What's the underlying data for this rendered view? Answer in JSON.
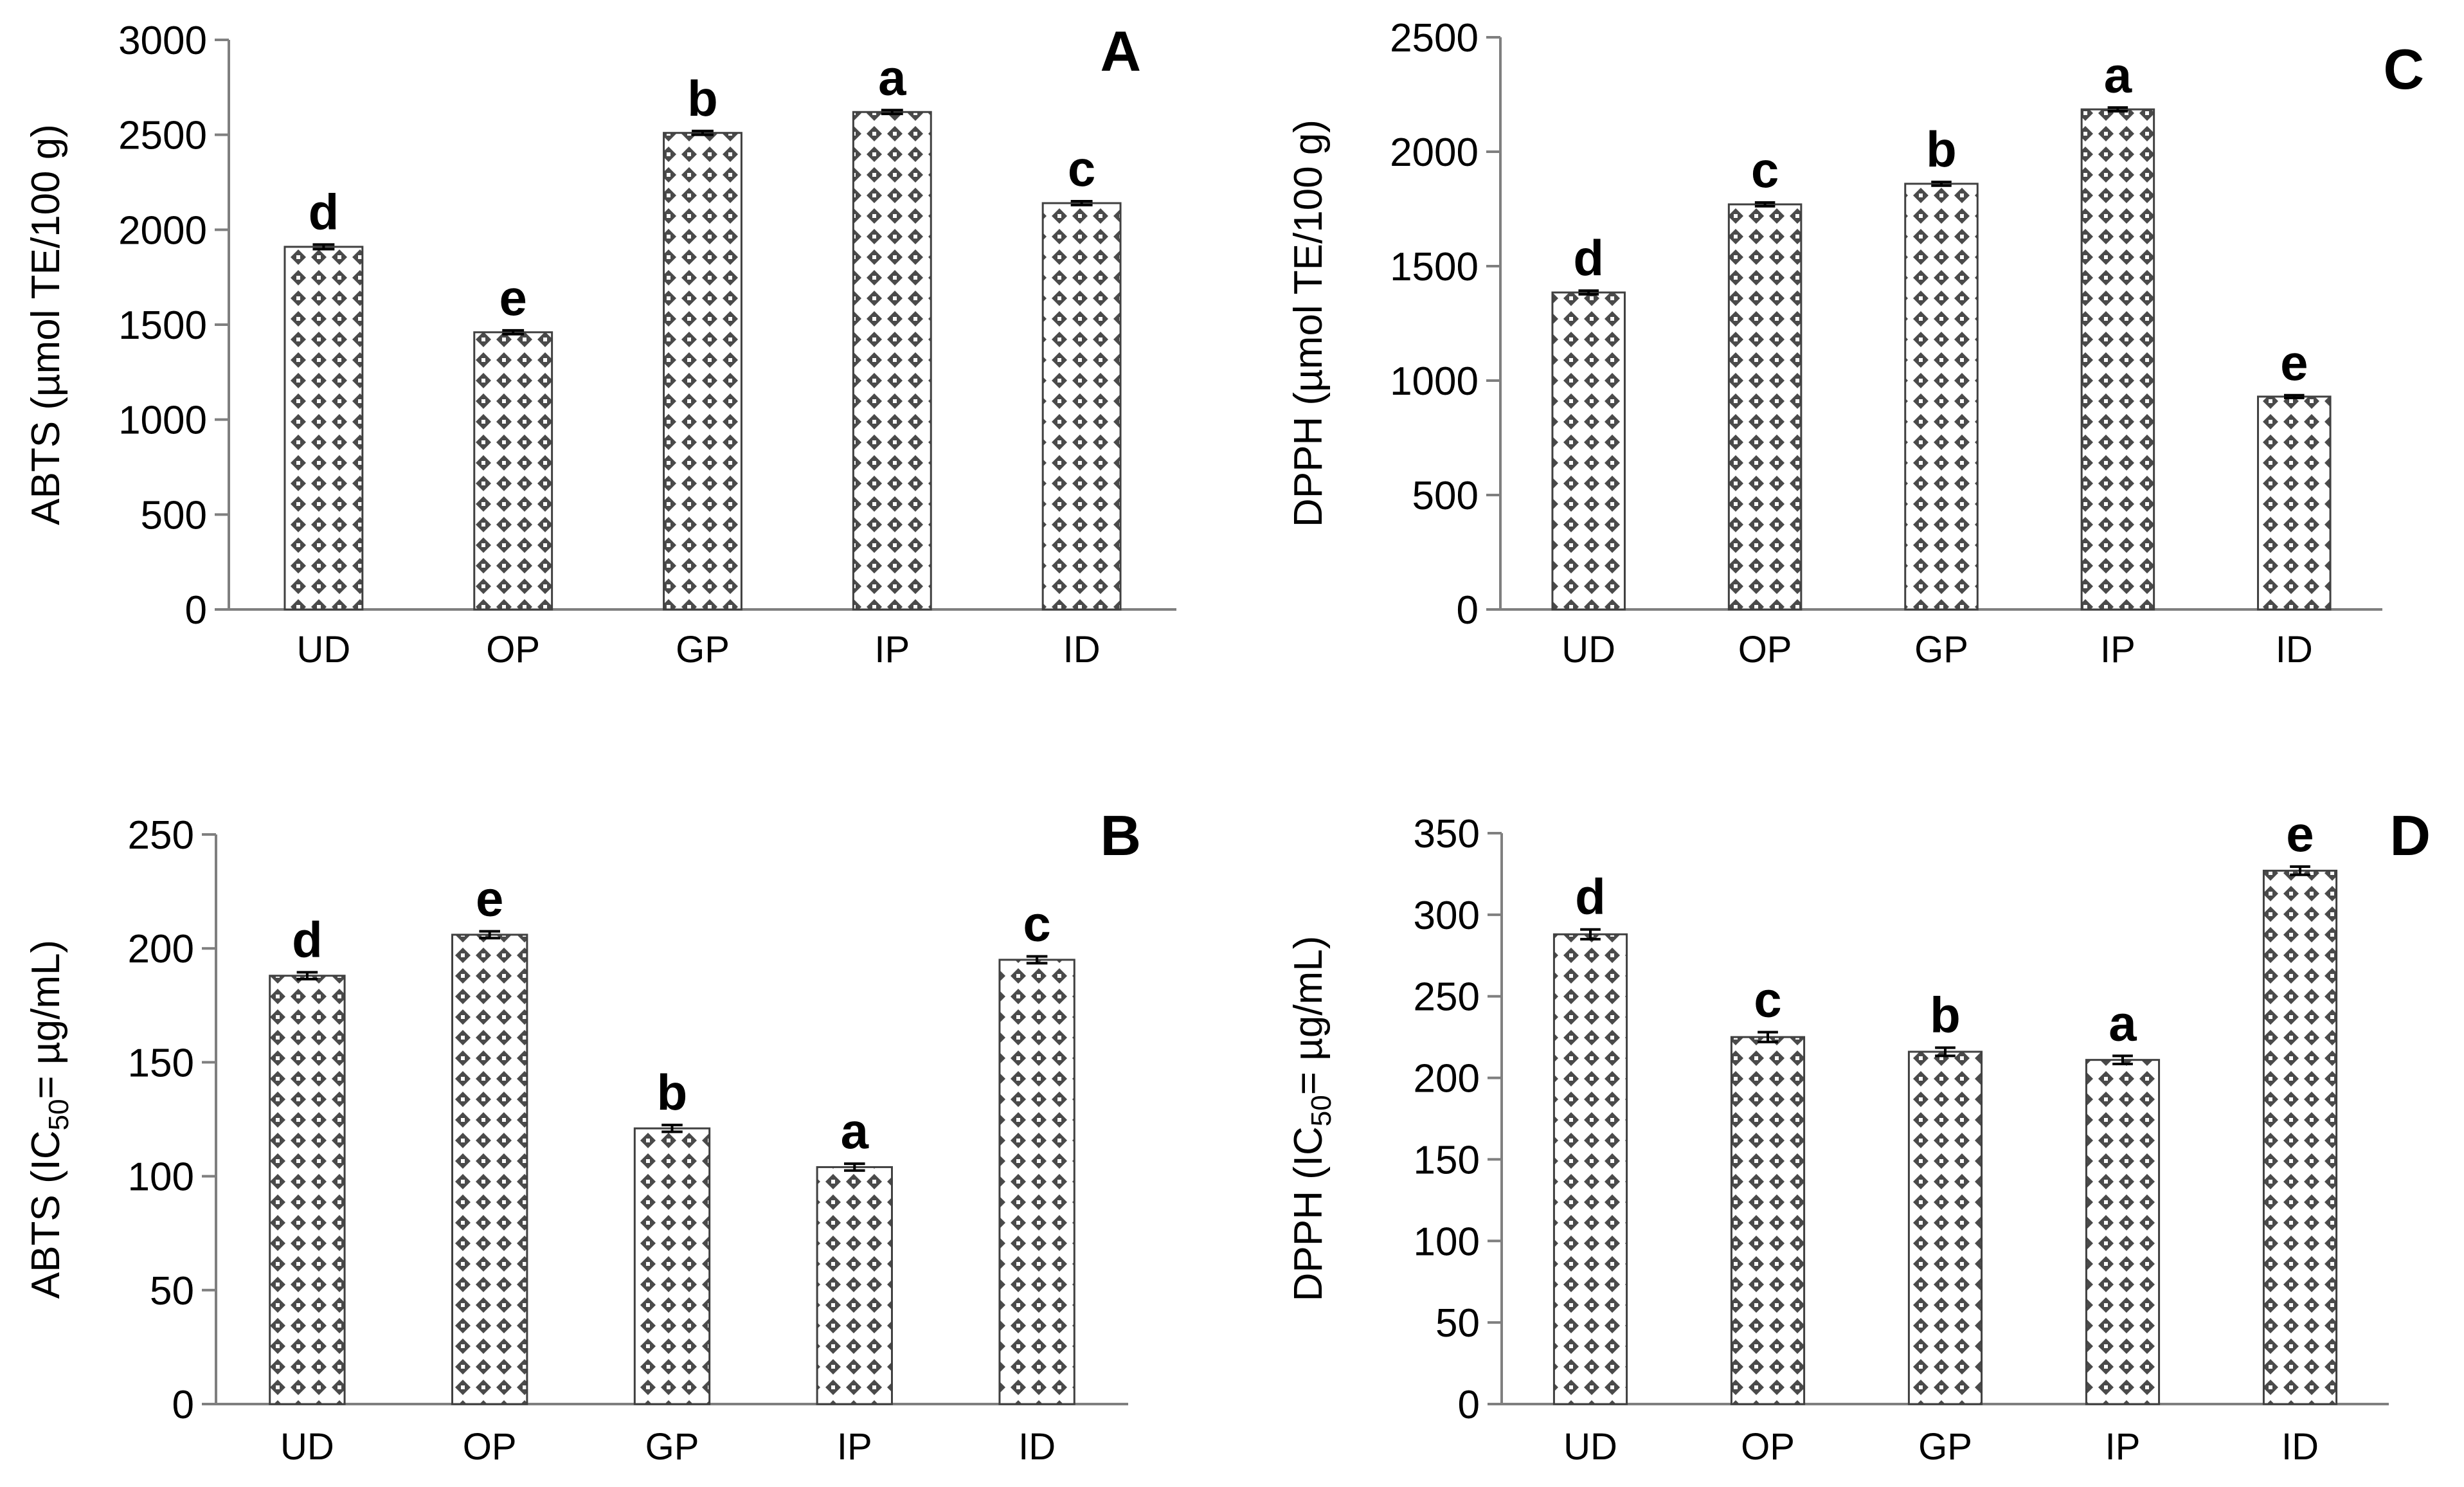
{
  "colors": {
    "bar_fill": "#ffffff",
    "bar_pattern": "#4a4a4a",
    "bar_outline": "#404040",
    "axis": "#7f7f7f",
    "text": "#000000"
  },
  "chart_data": [
    {
      "id": "A",
      "type": "bar",
      "panel_label": "A",
      "title": "",
      "xlabel": "",
      "ylabel": "ABTS (µmol TE/100 g)",
      "ylabel_parts": [
        "ABTS (µmol TE/100 g)"
      ],
      "categories": [
        "UD",
        "OP",
        "GP",
        "IP",
        "ID"
      ],
      "values": [
        1910,
        1460,
        2510,
        2620,
        2140
      ],
      "errors": [
        12,
        10,
        10,
        10,
        10
      ],
      "significance_letters": [
        "d",
        "e",
        "b",
        "a",
        "c"
      ],
      "ylim": [
        0,
        3000
      ],
      "yticks": [
        0,
        500,
        1000,
        1500,
        2000,
        2500,
        3000
      ],
      "ytick_labels": [
        "0",
        "500",
        "1000",
        "1500",
        "2000",
        "2500",
        "3000"
      ],
      "grid": false,
      "pattern": "dotted-diamond"
    },
    {
      "id": "C",
      "type": "bar",
      "panel_label": "C",
      "title": "",
      "xlabel": "",
      "ylabel": "DPPH (µmol TE/100 g)",
      "ylabel_parts": [
        "DPPH (µmol TE/100 g)"
      ],
      "categories": [
        "UD",
        "OP",
        "GP",
        "IP",
        "ID"
      ],
      "values": [
        1385,
        1770,
        1860,
        2185,
        930
      ],
      "errors": [
        8,
        8,
        8,
        8,
        6
      ],
      "significance_letters": [
        "d",
        "c",
        "b",
        "a",
        "e"
      ],
      "ylim": [
        0,
        2500
      ],
      "yticks": [
        0,
        500,
        1000,
        1500,
        2000,
        2500
      ],
      "ytick_labels": [
        "0",
        "500",
        "1000",
        "1500",
        "2000",
        "2500"
      ],
      "grid": false,
      "pattern": "dotted-diamond"
    },
    {
      "id": "B",
      "type": "bar",
      "panel_label": "B",
      "title": "",
      "xlabel": "",
      "ylabel": "ABTS (IC50= µg/mL)",
      "ylabel_parts": [
        "ABTS (IC",
        "50",
        "= µg/mL)"
      ],
      "categories": [
        "UD",
        "OP",
        "GP",
        "IP",
        "ID"
      ],
      "values": [
        188,
        206,
        121,
        104,
        195
      ],
      "errors": [
        1.5,
        1.5,
        1.5,
        1.5,
        1.5
      ],
      "significance_letters": [
        "d",
        "e",
        "b",
        "a",
        "c"
      ],
      "ylim": [
        0,
        250
      ],
      "yticks": [
        0,
        50,
        100,
        150,
        200,
        250
      ],
      "ytick_labels": [
        "0",
        "50",
        "100",
        "150",
        "200",
        "250"
      ],
      "grid": false,
      "pattern": "dotted-diamond"
    },
    {
      "id": "D",
      "type": "bar",
      "panel_label": "D",
      "title": "",
      "xlabel": "",
      "ylabel": "DPPH (IC50= µg/mL)",
      "ylabel_parts": [
        "DPPH (IC",
        "50",
        "= µg/mL)"
      ],
      "categories": [
        "UD",
        "OP",
        "GP",
        "IP",
        "ID"
      ],
      "values": [
        288,
        225,
        216,
        211,
        327
      ],
      "errors": [
        3,
        3,
        2.5,
        2.5,
        2.5
      ],
      "significance_letters": [
        "d",
        "c",
        "b",
        "a",
        "e"
      ],
      "ylim": [
        0,
        350
      ],
      "yticks": [
        0,
        50,
        100,
        150,
        200,
        250,
        300,
        350
      ],
      "ytick_labels": [
        "0",
        "50",
        "100",
        "150",
        "200",
        "250",
        "300",
        "350"
      ],
      "grid": false,
      "pattern": "dotted-diamond"
    }
  ]
}
